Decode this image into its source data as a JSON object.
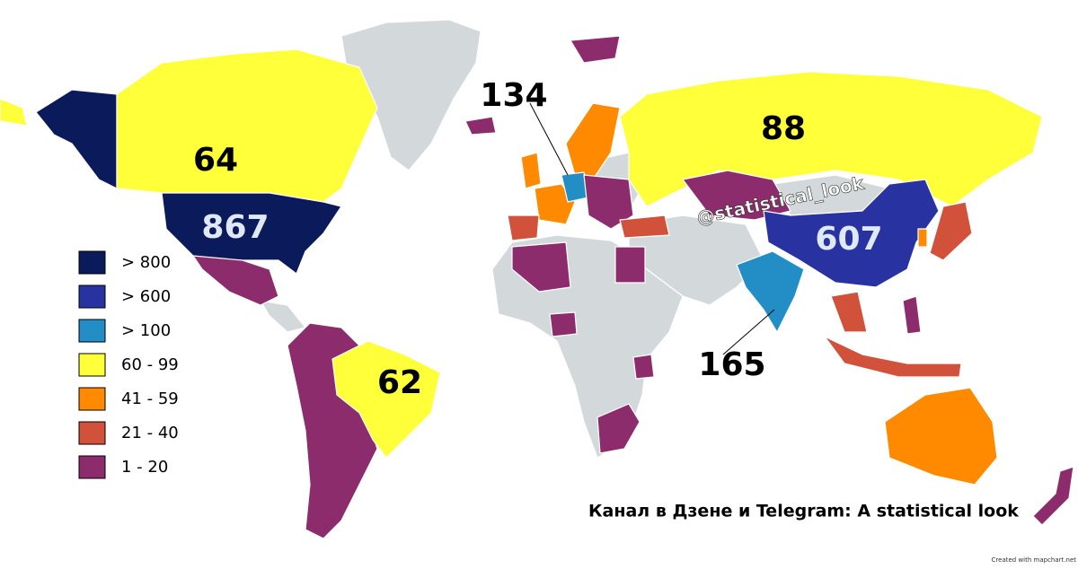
{
  "title": "Канал в Дзене и Telegram: A statistical look",
  "watermark": "@statistical_look",
  "credit": "Created with mapchart.net",
  "legend": [
    {
      "label": "> 800",
      "color": "#0b1a5a"
    },
    {
      "label": "> 600",
      "color": "#2832a0"
    },
    {
      "label": "> 100",
      "color": "#238ec6"
    },
    {
      "label": "60 - 99",
      "color": "#ffff3a"
    },
    {
      "label": "41 - 59",
      "color": "#ff8a00"
    },
    {
      "label": "21 - 40",
      "color": "#d1513b"
    },
    {
      "label": "1 - 20",
      "color": "#8c2c6c"
    }
  ],
  "labels": [
    {
      "value": 867
    },
    {
      "value": 607
    },
    {
      "value": 165
    },
    {
      "value": 134
    },
    {
      "value": 88
    },
    {
      "value": 64
    },
    {
      "value": 62
    }
  ]
}
